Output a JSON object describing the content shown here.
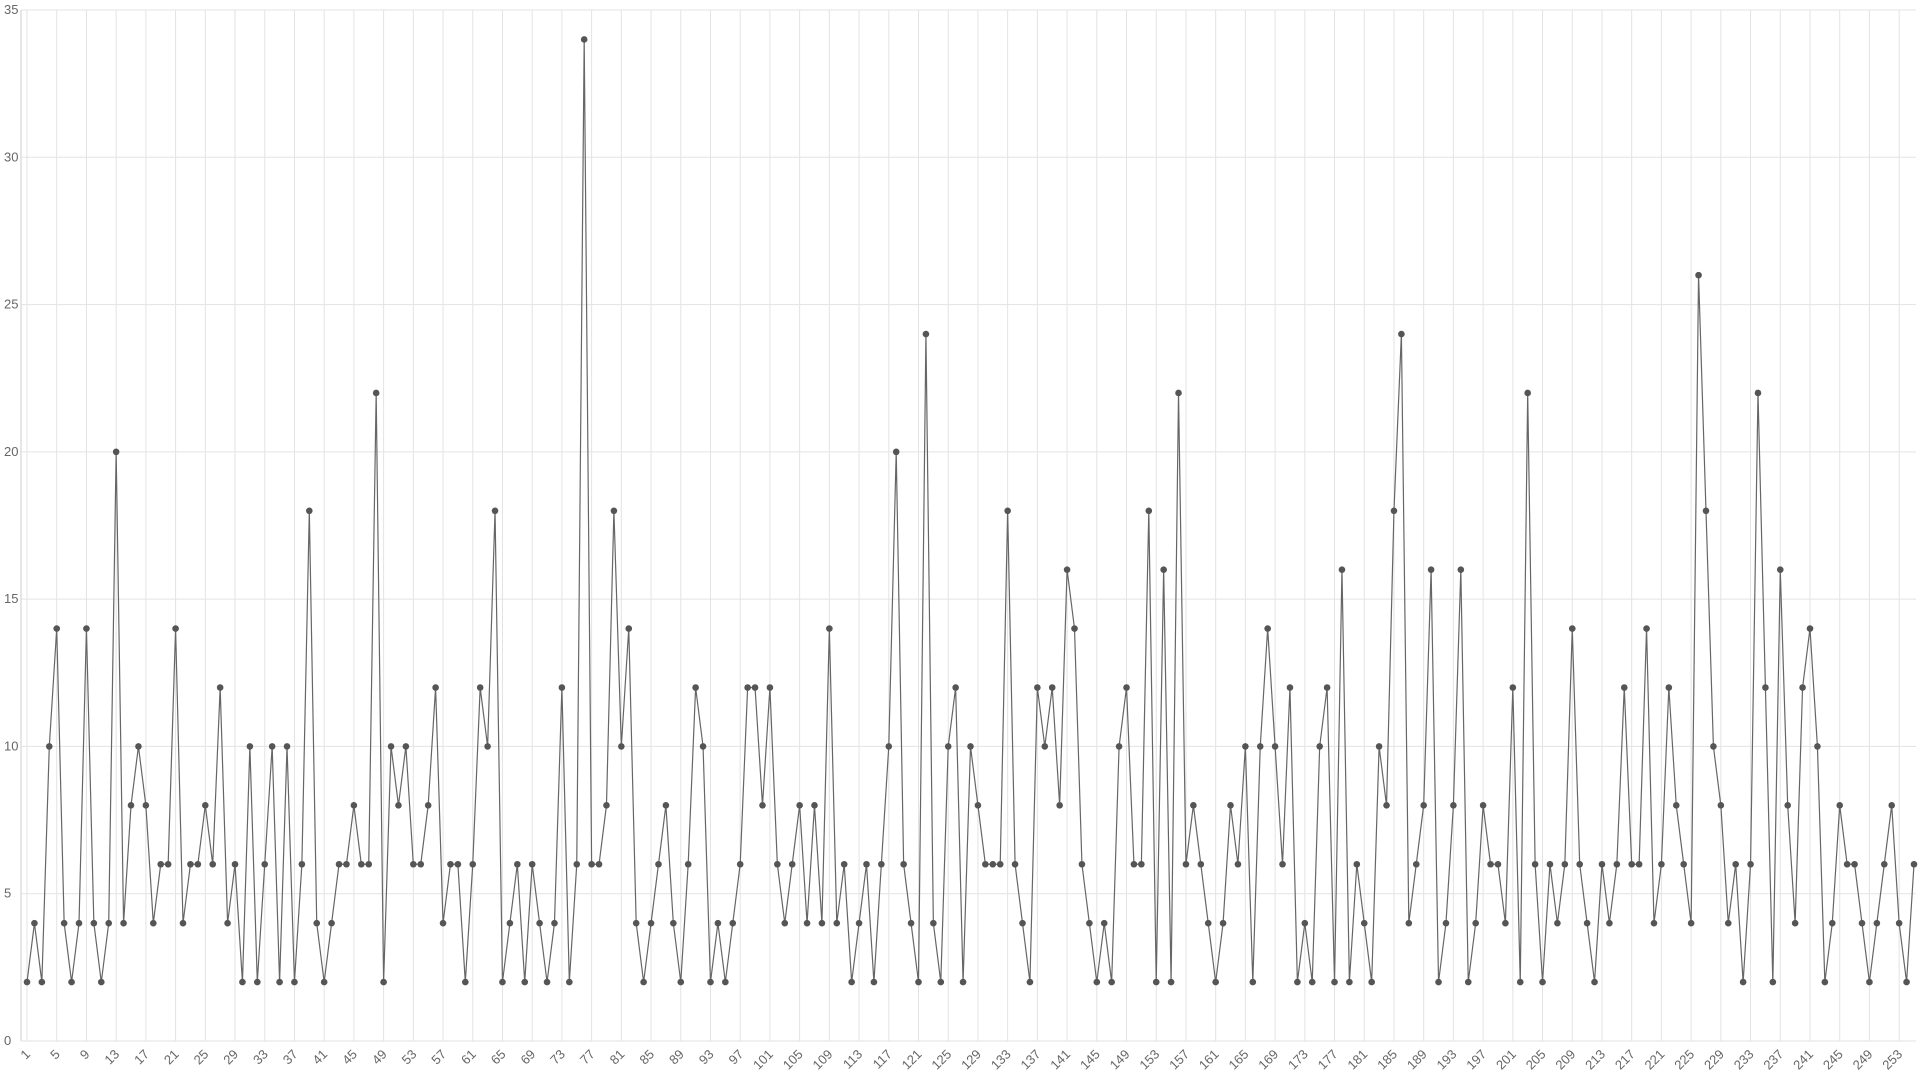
{
  "chart_data": {
    "type": "line",
    "x": [
      1,
      2,
      3,
      4,
      5,
      6,
      7,
      8,
      9,
      10,
      11,
      12,
      13,
      14,
      15,
      16,
      17,
      18,
      19,
      20,
      21,
      22,
      23,
      24,
      25,
      26,
      27,
      28,
      29,
      30,
      31,
      32,
      33,
      34,
      35,
      36,
      37,
      38,
      39,
      40,
      41,
      42,
      43,
      44,
      45,
      46,
      47,
      48,
      49,
      50,
      51,
      52,
      53,
      54,
      55,
      56,
      57,
      58,
      59,
      60,
      61,
      62,
      63,
      64,
      65,
      66,
      67,
      68,
      69,
      70,
      71,
      72,
      73,
      74,
      75,
      76,
      77,
      78,
      79,
      80,
      81,
      82,
      83,
      84,
      85,
      86,
      87,
      88,
      89,
      90,
      91,
      92,
      93,
      94,
      95,
      96,
      97,
      98,
      99,
      100,
      101,
      102,
      103,
      104,
      105,
      106,
      107,
      108,
      109,
      110,
      111,
      112,
      113,
      114,
      115,
      116,
      117,
      118,
      119,
      120,
      121,
      122,
      123,
      124,
      125,
      126,
      127,
      128,
      129,
      130,
      131,
      132,
      133,
      134,
      135,
      136,
      137,
      138,
      139,
      140,
      141,
      142,
      143,
      144,
      145,
      146,
      147,
      148,
      149,
      150,
      151,
      152,
      153,
      154,
      155,
      156,
      157,
      158,
      159,
      160,
      161,
      162,
      163,
      164,
      165,
      166,
      167,
      168,
      169,
      170,
      171,
      172,
      173,
      174,
      175,
      176,
      177,
      178,
      179,
      180,
      181,
      182,
      183,
      184,
      185,
      186,
      187,
      188,
      189,
      190,
      191,
      192,
      193,
      194,
      195,
      196,
      197,
      198,
      199,
      200,
      201,
      202,
      203,
      204,
      205,
      206,
      207,
      208,
      209,
      210,
      211,
      212,
      213,
      214,
      215,
      216,
      217,
      218,
      219,
      220,
      221,
      222,
      223,
      224,
      225,
      226,
      227,
      228,
      229,
      230,
      231,
      232,
      233,
      234,
      235,
      236,
      237,
      238,
      239,
      240,
      241,
      242,
      243,
      244,
      245,
      246,
      247,
      248,
      249,
      250,
      251,
      252,
      253,
      254,
      255
    ],
    "values": [
      2,
      4,
      2,
      10,
      14,
      4,
      2,
      4,
      14,
      4,
      2,
      4,
      20,
      4,
      8,
      10,
      8,
      4,
      6,
      6,
      14,
      4,
      6,
      6,
      8,
      6,
      12,
      4,
      6,
      2,
      10,
      2,
      6,
      10,
      2,
      10,
      2,
      6,
      18,
      4,
      2,
      4,
      6,
      6,
      8,
      6,
      6,
      22,
      2,
      10,
      8,
      10,
      6,
      6,
      8,
      12,
      4,
      6,
      6,
      2,
      6,
      12,
      10,
      18,
      2,
      4,
      6,
      2,
      6,
      4,
      2,
      4,
      12,
      2,
      6,
      34,
      6,
      6,
      8,
      18,
      10,
      14,
      4,
      2,
      4,
      6,
      8,
      4,
      2,
      6,
      12,
      10,
      2,
      4,
      2,
      4,
      6,
      12,
      12,
      8,
      12,
      6,
      4,
      6,
      8,
      4,
      8,
      4,
      14,
      4,
      6,
      2,
      4,
      6,
      2,
      6,
      10,
      20,
      6,
      4,
      2,
      24,
      4,
      2,
      10,
      12,
      2,
      10,
      8,
      6,
      6,
      6,
      18,
      6,
      4,
      2,
      12,
      10,
      12,
      8,
      16,
      14,
      6,
      4,
      2,
      4,
      2,
      10,
      12,
      6,
      6,
      18,
      2,
      16,
      2,
      22,
      6,
      8,
      6,
      4,
      2,
      4,
      8,
      6,
      10,
      2,
      10,
      14,
      10,
      6,
      12,
      2,
      4,
      2,
      10,
      12,
      2,
      16,
      2,
      6,
      4,
      2,
      10,
      8,
      18,
      24,
      4,
      6,
      8,
      16,
      2,
      4,
      8,
      16,
      2,
      4,
      8,
      6,
      6,
      4,
      12,
      2,
      22,
      6,
      2,
      6,
      4,
      6,
      14,
      6,
      4,
      2,
      6,
      4,
      6,
      12,
      6,
      6,
      14,
      4,
      6,
      12,
      8,
      6,
      4,
      26,
      18,
      10,
      8,
      4,
      6,
      2,
      6,
      22,
      12,
      2,
      16,
      8,
      4,
      12,
      14,
      10,
      2,
      4,
      8,
      6,
      6,
      4,
      2,
      4,
      6,
      8,
      4,
      2,
      6
    ],
    "color": "#666666",
    "point_color": "#555555",
    "xlim": [
      1,
      255
    ],
    "xticks": [
      1,
      5,
      9,
      13,
      17,
      21,
      25,
      29,
      33,
      37,
      41,
      45,
      49,
      53,
      57,
      61,
      65,
      69,
      73,
      77,
      81,
      85,
      89,
      93,
      97,
      101,
      105,
      109,
      113,
      117,
      121,
      125,
      129,
      133,
      137,
      141,
      145,
      149,
      153,
      157,
      161,
      165,
      169,
      173,
      177,
      181,
      185,
      189,
      193,
      197,
      201,
      205,
      209,
      213,
      217,
      221,
      225,
      229,
      233,
      237,
      241,
      245,
      249,
      253
    ],
    "ylim": [
      0,
      35
    ],
    "yticks": [
      0,
      5,
      10,
      15,
      20,
      25,
      30,
      35
    ],
    "grid": true
  }
}
